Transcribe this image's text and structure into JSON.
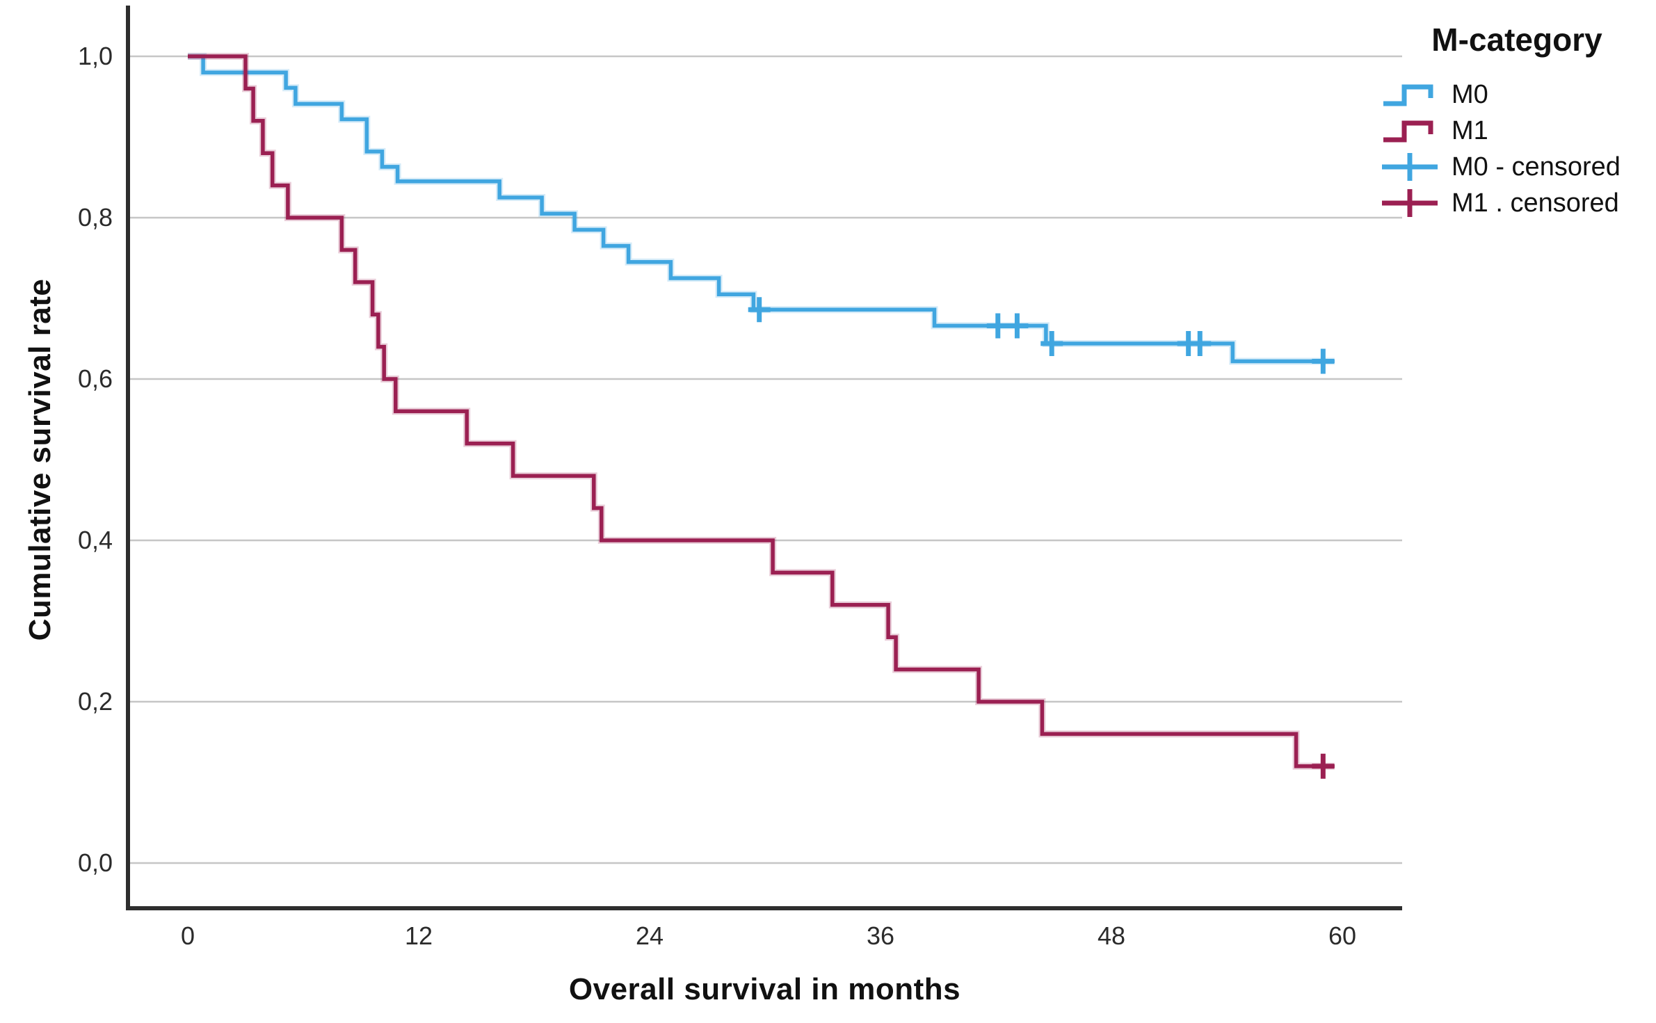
{
  "figure": {
    "background_color": "#ffffff",
    "x_axis_title": "Overall survival in months",
    "y_axis_title": "Cumulative survival rate"
  },
  "legend": {
    "title": "M-category",
    "items": [
      {
        "label": "M0",
        "type": "step",
        "color": "#40A6E0"
      },
      {
        "label": "M1",
        "type": "step",
        "color": "#9B2052"
      },
      {
        "label": "M0 - censored",
        "type": "plus",
        "color": "#40A6E0"
      },
      {
        "label": "M1 . censored",
        "type": "plus",
        "color": "#9B2052"
      }
    ]
  },
  "chart_data": {
    "type": "line",
    "subtype": "kaplan-meier-step",
    "title": "",
    "xlabel": "Overall survival in months",
    "ylabel": "Cumulative survival rate",
    "xlim": [
      -3.1,
      63.1
    ],
    "ylim": [
      -0.11,
      1.05
    ],
    "grid": "horizontal-only",
    "grid_color": "#c6c6c6",
    "axis_color": "#2e2e2e",
    "tick_text_color": "#2b2b2b",
    "legend_position": "top-right",
    "x_ticks": [
      {
        "label": "0",
        "value": 0
      },
      {
        "label": "12",
        "value": 12
      },
      {
        "label": "24",
        "value": 24
      },
      {
        "label": "36",
        "value": 36
      },
      {
        "label": "48",
        "value": 48
      },
      {
        "label": "60",
        "value": 60
      }
    ],
    "y_ticks": [
      {
        "label": "1,0",
        "value": 1.0
      },
      {
        "label": "0,8",
        "value": 0.8
      },
      {
        "label": "0,6",
        "value": 0.6
      },
      {
        "label": "0,4",
        "value": 0.4
      },
      {
        "label": "0,2",
        "value": 0.2
      },
      {
        "label": "0,0",
        "value": 0.0
      }
    ],
    "series": [
      {
        "name": "M0",
        "color": "#40A6E0",
        "end_month": 59.6,
        "points": [
          [
            0,
            1.0
          ],
          [
            0.8,
            0.98
          ],
          [
            5.1,
            0.961
          ],
          [
            5.6,
            0.941
          ],
          [
            8.0,
            0.922
          ],
          [
            9.3,
            0.882
          ],
          [
            10.1,
            0.863
          ],
          [
            10.9,
            0.845
          ],
          [
            16.2,
            0.825
          ],
          [
            18.4,
            0.805
          ],
          [
            20.1,
            0.785
          ],
          [
            21.6,
            0.765
          ],
          [
            22.9,
            0.745
          ],
          [
            25.1,
            0.725
          ],
          [
            27.6,
            0.705
          ],
          [
            29.4,
            0.686
          ],
          [
            38.8,
            0.666
          ],
          [
            44.6,
            0.644
          ],
          [
            54.3,
            0.622
          ]
        ],
        "censored": [
          [
            29.7,
            0.686
          ],
          [
            42.1,
            0.666
          ],
          [
            43.1,
            0.666
          ],
          [
            44.9,
            0.644
          ],
          [
            52.0,
            0.644
          ],
          [
            52.6,
            0.644
          ],
          [
            59.0,
            0.622
          ]
        ]
      },
      {
        "name": "M1",
        "color": "#9B2052",
        "end_month": 59.6,
        "points": [
          [
            0,
            1.0
          ],
          [
            3.0,
            0.96
          ],
          [
            3.4,
            0.92
          ],
          [
            3.9,
            0.88
          ],
          [
            4.4,
            0.84
          ],
          [
            5.2,
            0.8
          ],
          [
            8.0,
            0.76
          ],
          [
            8.7,
            0.72
          ],
          [
            9.6,
            0.68
          ],
          [
            9.9,
            0.64
          ],
          [
            10.2,
            0.6
          ],
          [
            10.8,
            0.56
          ],
          [
            14.5,
            0.52
          ],
          [
            16.9,
            0.48
          ],
          [
            21.1,
            0.44
          ],
          [
            21.5,
            0.4
          ],
          [
            30.4,
            0.36
          ],
          [
            33.5,
            0.32
          ],
          [
            36.4,
            0.28
          ],
          [
            36.8,
            0.24
          ],
          [
            41.1,
            0.2
          ],
          [
            44.4,
            0.16
          ],
          [
            57.6,
            0.12
          ]
        ],
        "censored": [
          [
            59.0,
            0.12
          ]
        ]
      }
    ]
  }
}
